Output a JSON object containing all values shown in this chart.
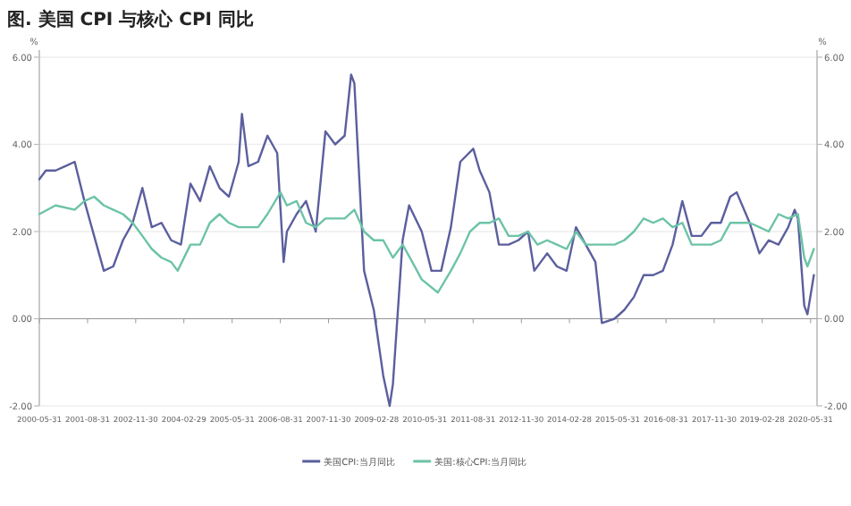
{
  "chart_data": {
    "type": "line",
    "title": "图. 美国 CPI 与核心 CPI 同比",
    "ylabel": "%",
    "y2label": "%",
    "xlim": [
      "2000-05-31",
      "2020-07-31"
    ],
    "xticks": [
      "2000-05-31",
      "2001-08-31",
      "2002-11-30",
      "2004-02-29",
      "2005-05-31",
      "2006-08-31",
      "2007-11-30",
      "2009-02-28",
      "2010-05-31",
      "2011-08-31",
      "2012-11-30",
      "2014-02-28",
      "2015-05-31",
      "2016-08-31",
      "2017-11-30",
      "2019-02-28",
      "2020-05-31"
    ],
    "ylim": [
      -2,
      6
    ],
    "yticks": [
      {
        "value": -2,
        "label": "-2.00"
      },
      {
        "value": 0,
        "label": "0.00"
      },
      {
        "value": 2,
        "label": "2.00"
      },
      {
        "value": 4,
        "label": "4.00"
      },
      {
        "value": 6,
        "label": "6.00"
      }
    ],
    "y2lim": [
      -2,
      6
    ],
    "y2ticks": [
      {
        "value": -2,
        "label": "-2.00"
      },
      {
        "value": 0,
        "label": "0.00"
      },
      {
        "value": 2,
        "label": "2.00"
      },
      {
        "value": 4,
        "label": "4.00"
      },
      {
        "value": 6,
        "label": "6.00"
      }
    ],
    "grid": "y",
    "legend": "bottom",
    "marker": "none",
    "line_style": "solid",
    "series": [
      {
        "name": "美国CPI:当月同比",
        "color": "#5b5f9e",
        "x": [
          "2000-05-31",
          "2000-08",
          "2000-11",
          "2001-02",
          "2001-05",
          "2001-08",
          "2001-11",
          "2002-02",
          "2002-05",
          "2002-08",
          "2002-11",
          "2003-02",
          "2003-05",
          "2003-08",
          "2003-11",
          "2004-02",
          "2004-05",
          "2004-08",
          "2004-11",
          "2005-02",
          "2005-05",
          "2005-08",
          "2005-09",
          "2005-11",
          "2006-02",
          "2006-05",
          "2006-08",
          "2006-10",
          "2006-11",
          "2007-02",
          "2007-05",
          "2007-08",
          "2007-11",
          "2008-02",
          "2008-05",
          "2008-07",
          "2008-08",
          "2008-11",
          "2009-02",
          "2009-05",
          "2009-07",
          "2009-08",
          "2009-11",
          "2010-01",
          "2010-05",
          "2010-08",
          "2010-11",
          "2011-02",
          "2011-05",
          "2011-09",
          "2011-11",
          "2012-02",
          "2012-05",
          "2012-08",
          "2012-11",
          "2013-02",
          "2013-04",
          "2013-08",
          "2013-11",
          "2014-02",
          "2014-05",
          "2014-08",
          "2014-11",
          "2015-01",
          "2015-05",
          "2015-08",
          "2015-11",
          "2016-02",
          "2016-05",
          "2016-08",
          "2016-11",
          "2017-02",
          "2017-05",
          "2017-08",
          "2017-11",
          "2018-02",
          "2018-05",
          "2018-07",
          "2018-11",
          "2019-02",
          "2019-05",
          "2019-08",
          "2019-11",
          "2020-01",
          "2020-02",
          "2020-04",
          "2020-05",
          "2020-07"
        ],
        "values": [
          3.2,
          3.4,
          3.4,
          3.5,
          3.6,
          2.7,
          1.9,
          1.1,
          1.2,
          1.8,
          2.2,
          3.0,
          2.1,
          2.2,
          1.8,
          1.7,
          3.1,
          2.7,
          3.5,
          3.0,
          2.8,
          3.6,
          4.7,
          3.5,
          3.6,
          4.2,
          3.8,
          1.3,
          2.0,
          2.4,
          2.7,
          2.0,
          4.3,
          4.0,
          4.2,
          5.6,
          5.4,
          1.1,
          0.2,
          -1.3,
          -2.0,
          -1.5,
          1.8,
          2.6,
          2.0,
          1.1,
          1.1,
          2.1,
          3.6,
          3.9,
          3.4,
          2.9,
          1.7,
          1.7,
          1.8,
          2.0,
          1.1,
          1.5,
          1.2,
          1.1,
          2.1,
          1.7,
          1.3,
          -0.1,
          0.0,
          0.2,
          0.5,
          1.0,
          1.0,
          1.1,
          1.7,
          2.7,
          1.9,
          1.9,
          2.2,
          2.2,
          2.8,
          2.9,
          2.2,
          1.5,
          1.8,
          1.7,
          2.1,
          2.5,
          2.3,
          0.3,
          0.1,
          1.0
        ]
      },
      {
        "name": "美国:核心CPI:当月同比",
        "color": "#6cc3a6",
        "x": [
          "2000-05-31",
          "2000-11",
          "2001-05",
          "2001-08",
          "2001-11",
          "2002-02",
          "2002-05",
          "2002-08",
          "2002-11",
          "2003-02",
          "2003-05",
          "2003-08",
          "2003-11",
          "2004-01",
          "2004-05",
          "2004-08",
          "2004-11",
          "2005-02",
          "2005-05",
          "2005-08",
          "2005-11",
          "2006-02",
          "2006-05",
          "2006-09",
          "2006-11",
          "2007-02",
          "2007-05",
          "2007-08",
          "2007-11",
          "2008-02",
          "2008-05",
          "2008-08",
          "2008-11",
          "2009-02",
          "2009-05",
          "2009-08",
          "2009-11",
          "2010-02",
          "2010-05",
          "2010-10",
          "2011-02",
          "2011-05",
          "2011-08",
          "2011-11",
          "2012-02",
          "2012-05",
          "2012-08",
          "2012-11",
          "2013-02",
          "2013-05",
          "2013-08",
          "2013-11",
          "2014-02",
          "2014-05",
          "2014-08",
          "2014-11",
          "2015-02",
          "2015-05",
          "2015-08",
          "2015-11",
          "2016-02",
          "2016-05",
          "2016-08",
          "2016-11",
          "2017-02",
          "2017-05",
          "2017-08",
          "2017-11",
          "2018-02",
          "2018-05",
          "2018-08",
          "2018-11",
          "2019-02",
          "2019-05",
          "2019-08",
          "2019-11",
          "2020-02",
          "2020-04",
          "2020-05",
          "2020-07"
        ],
        "values": [
          2.4,
          2.6,
          2.5,
          2.7,
          2.8,
          2.6,
          2.5,
          2.4,
          2.2,
          1.9,
          1.6,
          1.4,
          1.3,
          1.1,
          1.7,
          1.7,
          2.2,
          2.4,
          2.2,
          2.1,
          2.1,
          2.1,
          2.4,
          2.9,
          2.6,
          2.7,
          2.2,
          2.1,
          2.3,
          2.3,
          2.3,
          2.5,
          2.0,
          1.8,
          1.8,
          1.4,
          1.7,
          1.3,
          0.9,
          0.6,
          1.1,
          1.5,
          2.0,
          2.2,
          2.2,
          2.3,
          1.9,
          1.9,
          2.0,
          1.7,
          1.8,
          1.7,
          1.6,
          2.0,
          1.7,
          1.7,
          1.7,
          1.7,
          1.8,
          2.0,
          2.3,
          2.2,
          2.3,
          2.1,
          2.2,
          1.7,
          1.7,
          1.7,
          1.8,
          2.2,
          2.2,
          2.2,
          2.1,
          2.0,
          2.4,
          2.3,
          2.4,
          1.4,
          1.2,
          1.6
        ]
      }
    ]
  }
}
